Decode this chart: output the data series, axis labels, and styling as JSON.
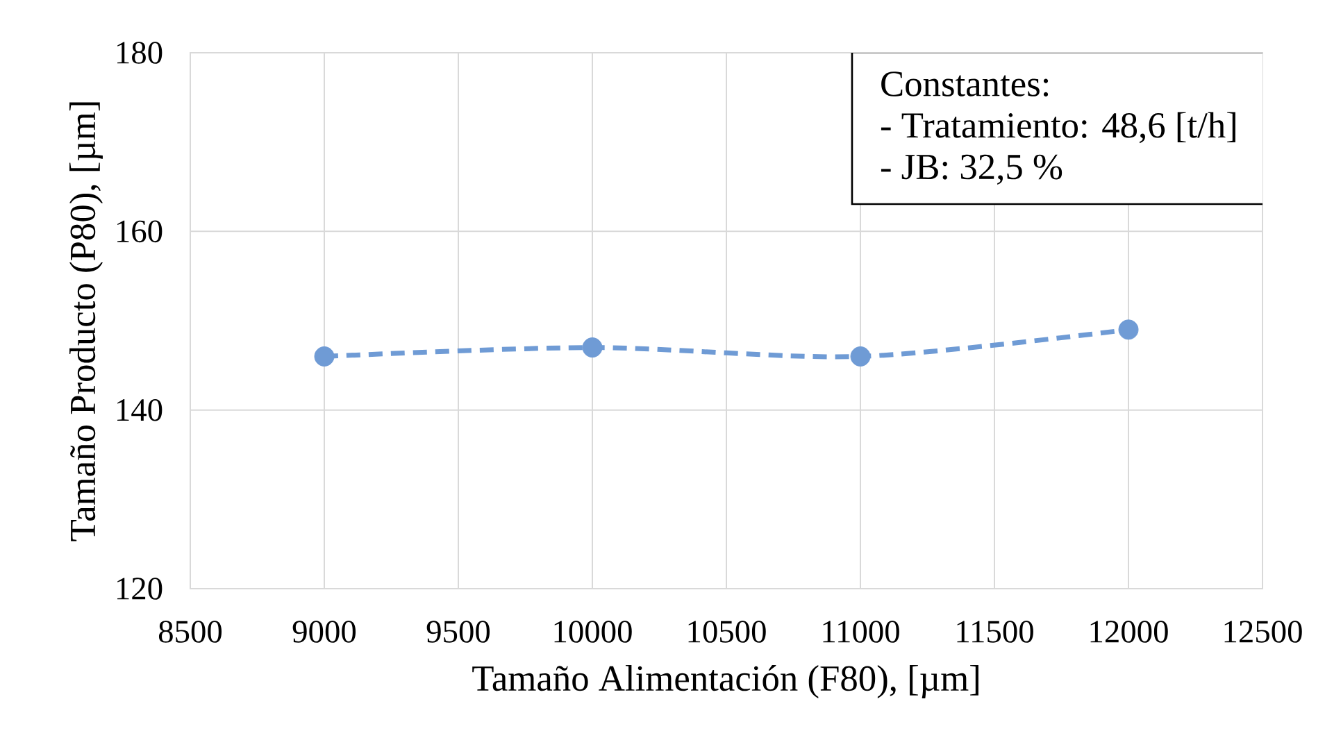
{
  "chart_data": {
    "type": "line",
    "xlabel": "Tamaño Alimentación (F80), [µm]",
    "ylabel": "Tamaño Producto (P80), [µm]",
    "x": [
      9000,
      10000,
      11000,
      12000
    ],
    "values": [
      146,
      147,
      146,
      149
    ],
    "color": "#6f9bd5",
    "xlim": [
      8500,
      12500
    ],
    "xticks": [
      8500,
      9000,
      9500,
      10000,
      10500,
      11000,
      11500,
      12000,
      12500
    ],
    "ylim": [
      120,
      180
    ],
    "yticks": [
      120,
      140,
      160,
      180
    ],
    "grid": true,
    "marker": "circle",
    "line_style": "dashed",
    "annotations": [
      "Constantes:",
      "- Tratamiento: 48,6 [t/h]",
      "- JB: 32,5 %"
    ]
  }
}
